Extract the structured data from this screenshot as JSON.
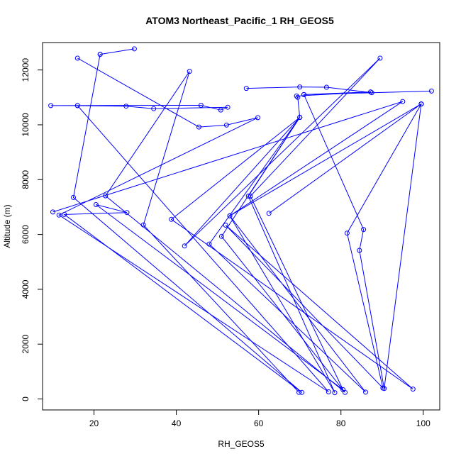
{
  "chart_data": {
    "type": "line",
    "title": "ATOM3 Northeast_Pacific_1 RH_GEOS5",
    "xlabel": "RH_GEOS5",
    "ylabel": "Altitude (m)",
    "xlim": [
      7.5,
      104
    ],
    "ylim": [
      -400,
      13000
    ],
    "xticks": [
      20,
      40,
      60,
      80,
      100
    ],
    "yticks": [
      0,
      2000,
      4000,
      6000,
      8000,
      10000,
      12000
    ],
    "grid": false,
    "legend": "none",
    "line_color": "#0000ff",
    "marker": "open-circle",
    "series": [
      {
        "points": [
          [
            16.0,
            12430
          ],
          [
            45.5,
            9920
          ],
          [
            52.2,
            9990
          ],
          [
            59.8,
            10260
          ],
          [
            11.5,
            6710
          ],
          [
            77.0,
            260
          ],
          [
            16.0,
            10700
          ],
          [
            9.5,
            10700
          ],
          [
            46.0,
            10710
          ],
          [
            50.8,
            10540
          ],
          [
            52.5,
            10640
          ],
          [
            34.5,
            10590
          ],
          [
            27.8,
            10680
          ],
          [
            16.0,
            10700
          ]
        ]
      },
      {
        "points": [
          [
            21.5,
            12570
          ],
          [
            15.0,
            7350
          ],
          [
            70.5,
            240
          ],
          [
            12.8,
            6730
          ],
          [
            28.0,
            6800
          ],
          [
            20.5,
            7090
          ],
          [
            80.5,
            340
          ],
          [
            58.0,
            7400
          ],
          [
            89.5,
            12430
          ],
          [
            42.0,
            5580
          ],
          [
            70.0,
            10270
          ],
          [
            51.0,
            5930
          ],
          [
            81.0,
            240
          ],
          [
            22.8,
            7410
          ],
          [
            43.2,
            11950
          ],
          [
            32.0,
            6350
          ],
          [
            69.8,
            240
          ]
        ]
      },
      {
        "points": [
          [
            29.8,
            12770
          ],
          [
            21.5,
            12570
          ]
        ]
      },
      {
        "points": [
          [
            10.0,
            6820
          ],
          [
            95.0,
            10850
          ],
          [
            53.0,
            6680
          ],
          [
            99.5,
            10760
          ],
          [
            90.5,
            380
          ],
          [
            84.5,
            5420
          ],
          [
            85.5,
            6180
          ],
          [
            71.0,
            11100
          ],
          [
            102.0,
            11230
          ],
          [
            87.5,
            11170
          ],
          [
            76.5,
            11370
          ],
          [
            70.0,
            11380
          ],
          [
            57.0,
            11330
          ]
        ]
      },
      {
        "points": [
          [
            99.5,
            10760
          ],
          [
            62.5,
            6770
          ]
        ]
      },
      {
        "points": [
          [
            99.5,
            10760
          ],
          [
            81.5,
            6050
          ],
          [
            90.2,
            400
          ],
          [
            52.0,
            6340
          ],
          [
            97.5,
            360
          ],
          [
            38.8,
            6550
          ],
          [
            70.0,
            10270
          ],
          [
            48.0,
            5650
          ],
          [
            86.0,
            250
          ],
          [
            53.0,
            6680
          ],
          [
            78.5,
            230
          ],
          [
            57.5,
            7400
          ],
          [
            70.0,
            10270
          ],
          [
            69.5,
            11000
          ],
          [
            69.2,
            11050
          ],
          [
            87.2,
            11200
          ],
          [
            71.0,
            11100
          ]
        ]
      }
    ]
  }
}
